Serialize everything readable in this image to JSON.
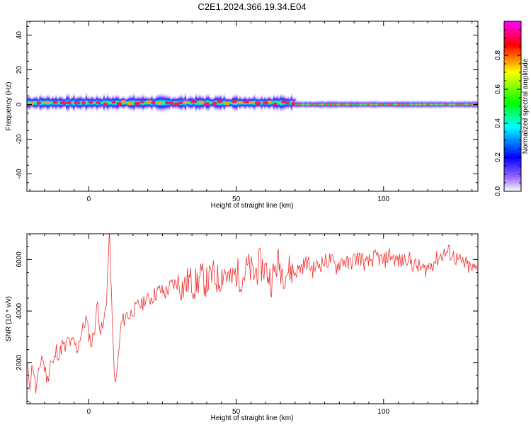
{
  "figure_title": "C2E1.2024.366.19.34.E04",
  "chart_data": [
    {
      "type": "heatmap",
      "title": "",
      "xlabel": "Height of straight line (km)",
      "ylabel": "Frequency (Hz)",
      "xlim": [
        -21,
        132
      ],
      "ylim": [
        -50,
        48
      ],
      "xticks": [
        0,
        50,
        100
      ],
      "yticks": [
        -40,
        -20,
        0,
        20,
        40
      ],
      "grid": false,
      "colorbar": {
        "label": "Normalized spectral amplitude",
        "range": [
          0.0,
          1.0
        ],
        "ticks": [
          0.0,
          0.2,
          0.4,
          0.6,
          0.8
        ],
        "colormap": [
          "#ff00ff",
          "#ff0000",
          "#ffff00",
          "#00ff00",
          "#00ffff",
          "#0000ff",
          "#ffffff"
        ]
      },
      "bands": [
        {
          "x_range": [
            -21,
            70
          ],
          "center_hz": 1.0,
          "peak_halfwidth_hz": 1.2,
          "outer_halfwidth_hz": 5.0,
          "peak_level": 0.9
        },
        {
          "x_range": [
            70,
            132
          ],
          "center_hz": 0.0,
          "peak_halfwidth_hz": 1.0,
          "outer_halfwidth_hz": 3.0,
          "peak_level": 0.5
        }
      ]
    },
    {
      "type": "line",
      "title": "",
      "xlabel": "Height of straight line (km)",
      "ylabel": "SNR (10 * v/v)",
      "xlim": [
        -21,
        132
      ],
      "ylim": [
        400,
        7000
      ],
      "xticks": [
        0,
        50,
        100
      ],
      "yticks": [
        2000,
        4000,
        6000
      ],
      "grid": false,
      "series": [
        {
          "name": "",
          "color": "#f03030",
          "x": [
            -21,
            -20,
            -19,
            -18,
            -17,
            -16,
            -15,
            -14,
            -13,
            -12,
            -11,
            -10,
            -9,
            -8,
            -7,
            -6,
            -5,
            -4,
            -3,
            -2,
            -1,
            0,
            1,
            2,
            3,
            4,
            5,
            6,
            7,
            8,
            9,
            10,
            11,
            12,
            13,
            14,
            15,
            16,
            17,
            18,
            19,
            20,
            22,
            24,
            26,
            28,
            30,
            32,
            34,
            36,
            38,
            40,
            42,
            44,
            46,
            48,
            50,
            52,
            54,
            56,
            58,
            60,
            62,
            64,
            66,
            68,
            70,
            72,
            74,
            76,
            78,
            80,
            82,
            84,
            86,
            88,
            90,
            92,
            94,
            96,
            98,
            100,
            102,
            104,
            106,
            108,
            110,
            112,
            114,
            116,
            118,
            120,
            122,
            124,
            126,
            128,
            130,
            132
          ],
          "values": [
            1900,
            1200,
            2000,
            900,
            1500,
            2300,
            1800,
            1300,
            2100,
            1900,
            2500,
            2300,
            2700,
            2500,
            2900,
            2700,
            2800,
            2500,
            3000,
            3300,
            3700,
            3100,
            2700,
            3400,
            4300,
            3200,
            3400,
            4500,
            7000,
            3300,
            1000,
            2200,
            3500,
            3700,
            3900,
            3800,
            4100,
            4000,
            4300,
            4200,
            4500,
            4400,
            4600,
            4800,
            4700,
            5000,
            5100,
            4900,
            5200,
            5000,
            5300,
            5100,
            5400,
            5200,
            5600,
            5100,
            5500,
            5300,
            5700,
            5400,
            5800,
            5600,
            5200,
            5900,
            5500,
            5600,
            5500,
            5700,
            5900,
            5600,
            5800,
            5900,
            6000,
            5700,
            6000,
            5800,
            6000,
            6100,
            5800,
            6000,
            6100,
            5900,
            6200,
            6000,
            5900,
            6100,
            5800,
            5700,
            5600,
            5800,
            6000,
            6200,
            6300,
            6100,
            5900,
            5800,
            5600,
            5700
          ]
        }
      ]
    }
  ]
}
